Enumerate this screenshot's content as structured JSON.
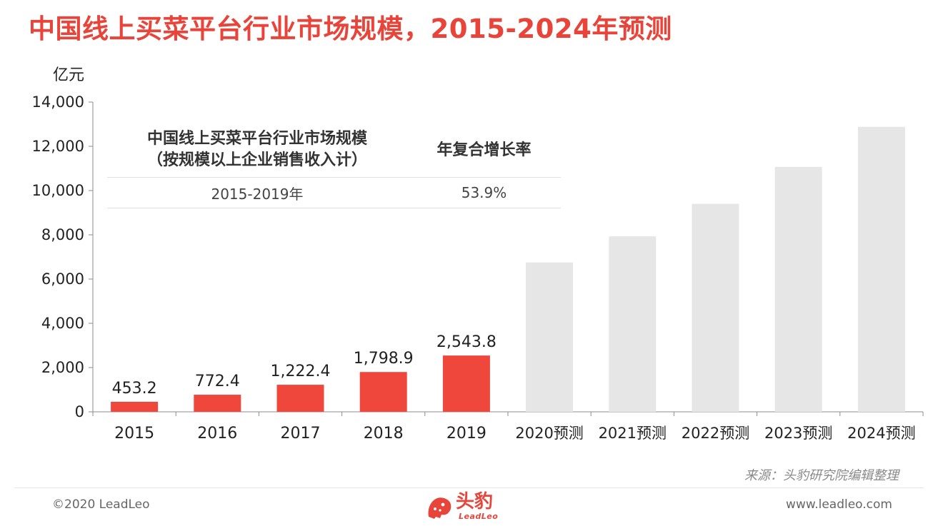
{
  "title": "中国线上买菜平台行业市场规模，2015-2024年预测",
  "chart_data": {
    "type": "bar",
    "ylabel": "亿元",
    "ylim": [
      0,
      14000
    ],
    "yticks": [
      0,
      2000,
      4000,
      6000,
      8000,
      10000,
      12000,
      14000
    ],
    "ytick_labels": [
      "0",
      "2,000",
      "4,000",
      "6,000",
      "8,000",
      "10,000",
      "12,000",
      "14,000"
    ],
    "categories": [
      "2015",
      "2016",
      "2017",
      "2018",
      "2019",
      "2020预测",
      "2021预测",
      "2022预测",
      "2023预测",
      "2024预测"
    ],
    "values": [
      453.2,
      772.4,
      1222.4,
      1798.9,
      2543.8,
      6750,
      7930,
      9400,
      11070,
      12880
    ],
    "data_labels": [
      "453.2",
      "772.4",
      "1,222.4",
      "1,798.9",
      "2,543.8",
      "",
      "",
      "",
      "",
      ""
    ],
    "forecast": [
      false,
      false,
      false,
      false,
      false,
      true,
      true,
      true,
      true,
      true
    ],
    "colors": {
      "actual": "#f0473c",
      "forecast": "#e6e6e6",
      "axis": "#8c8c8c",
      "title": "#e8443a"
    },
    "grid": false,
    "legend": "none"
  },
  "cagr_table": {
    "header_col1_line1": "中国线上买菜平台行业市场规模",
    "header_col1_line2": "（按规模以上企业销售收入计）",
    "header_col2": "年复合增长率",
    "period": "2015-2019年",
    "rate": "53.9%"
  },
  "source": "来源：头豹研究院编辑整理",
  "footer": {
    "copyright": "©2020 LeadLeo",
    "website": "www.leadleo.com",
    "logo_cn": "头豹",
    "logo_en": "LeadLeo"
  }
}
